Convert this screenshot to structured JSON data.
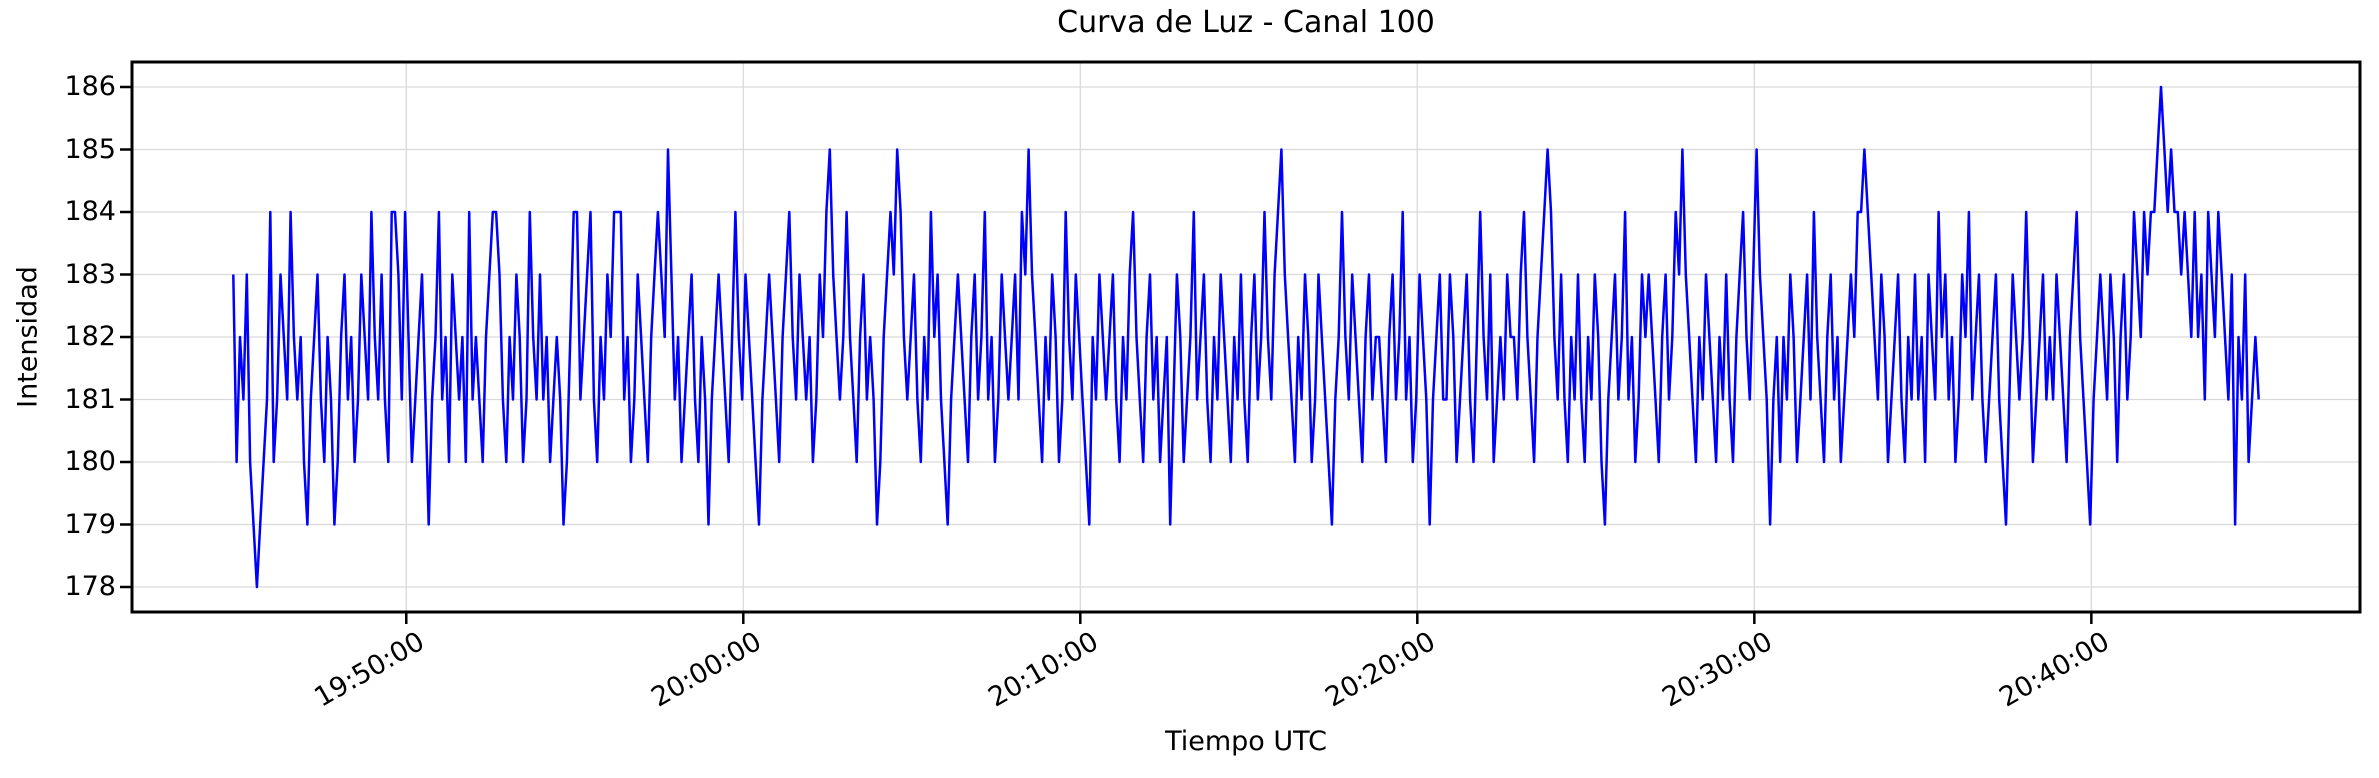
{
  "chart_data": {
    "type": "line",
    "title": "Curva de Luz - Canal 100",
    "xlabel": "Tiempo UTC",
    "ylabel": "Intensidad",
    "line_color": "#0000ff",
    "grid": true,
    "grid_color": "#d9d9d9",
    "background": "#ffffff",
    "ylim": [
      177.6,
      186.4
    ],
    "y_ticks": [
      178,
      179,
      180,
      181,
      182,
      183,
      184,
      185,
      186
    ],
    "x_tick_labels": [
      "19:50:00",
      "20:00:00",
      "20:10:00",
      "20:20:00",
      "20:30:00",
      "20:40:00"
    ],
    "x_start_utc": "19:44:52",
    "sample_interval_s": 6,
    "x_margin_fraction": 0.05,
    "values": [
      183,
      180,
      182,
      181,
      183,
      180,
      179,
      178,
      179,
      180,
      181,
      184,
      180,
      181,
      183,
      182,
      181,
      184,
      182,
      181,
      182,
      180,
      179,
      181,
      182,
      183,
      181,
      180,
      182,
      181,
      179,
      180,
      182,
      183,
      181,
      182,
      180,
      181,
      183,
      182,
      181,
      184,
      182,
      181,
      183,
      181,
      180,
      184,
      184,
      183,
      181,
      184,
      182,
      180,
      181,
      182,
      183,
      181,
      179,
      181,
      182,
      184,
      181,
      182,
      180,
      183,
      182,
      181,
      182,
      180,
      184,
      181,
      182,
      181,
      180,
      182,
      183,
      184,
      184,
      183,
      181,
      180,
      182,
      181,
      183,
      182,
      180,
      181,
      184,
      182,
      181,
      183,
      181,
      182,
      180,
      181,
      182,
      181,
      179,
      180,
      182,
      184,
      184,
      181,
      182,
      183,
      184,
      181,
      180,
      182,
      181,
      183,
      182,
      184,
      184,
      184,
      181,
      182,
      180,
      181,
      183,
      182,
      181,
      180,
      182,
      183,
      184,
      183,
      182,
      185,
      183,
      181,
      182,
      180,
      181,
      182,
      183,
      181,
      180,
      182,
      181,
      179,
      181,
      182,
      183,
      182,
      181,
      180,
      182,
      184,
      182,
      181,
      183,
      182,
      181,
      180,
      179,
      181,
      182,
      183,
      182,
      181,
      180,
      182,
      183,
      184,
      182,
      181,
      183,
      182,
      181,
      182,
      180,
      181,
      183,
      182,
      184,
      185,
      183,
      182,
      181,
      182,
      184,
      182,
      181,
      180,
      182,
      183,
      181,
      182,
      181,
      179,
      180,
      182,
      183,
      184,
      183,
      185,
      184,
      182,
      181,
      182,
      183,
      181,
      180,
      182,
      181,
      184,
      182,
      183,
      181,
      180,
      179,
      181,
      182,
      183,
      182,
      181,
      180,
      182,
      183,
      181,
      182,
      184,
      181,
      182,
      180,
      181,
      183,
      182,
      181,
      182,
      183,
      181,
      184,
      183,
      185,
      183,
      182,
      181,
      180,
      182,
      181,
      183,
      182,
      180,
      181,
      184,
      182,
      181,
      183,
      182,
      181,
      180,
      179,
      182,
      181,
      183,
      182,
      181,
      182,
      183,
      181,
      180,
      182,
      181,
      183,
      184,
      182,
      181,
      180,
      182,
      183,
      181,
      182,
      180,
      181,
      182,
      179,
      181,
      183,
      182,
      180,
      181,
      182,
      184,
      181,
      182,
      183,
      181,
      180,
      182,
      181,
      183,
      182,
      181,
      180,
      182,
      181,
      183,
      181,
      180,
      182,
      183,
      181,
      182,
      184,
      182,
      181,
      183,
      184,
      185,
      183,
      182,
      181,
      180,
      182,
      181,
      183,
      182,
      180,
      181,
      183,
      182,
      181,
      180,
      179,
      181,
      182,
      184,
      182,
      181,
      183,
      182,
      181,
      180,
      182,
      183,
      181,
      182,
      182,
      181,
      180,
      182,
      183,
      181,
      182,
      184,
      181,
      182,
      180,
      181,
      183,
      182,
      181,
      179,
      181,
      182,
      183,
      181,
      181,
      183,
      182,
      180,
      181,
      182,
      183,
      181,
      180,
      182,
      184,
      182,
      181,
      183,
      180,
      181,
      182,
      181,
      183,
      182,
      182,
      181,
      183,
      184,
      182,
      181,
      180,
      182,
      183,
      184,
      185,
      184,
      182,
      181,
      183,
      181,
      180,
      182,
      181,
      183,
      181,
      180,
      182,
      181,
      183,
      182,
      180,
      179,
      181,
      182,
      183,
      181,
      182,
      184,
      181,
      182,
      180,
      181,
      183,
      182,
      183,
      182,
      181,
      180,
      182,
      183,
      181,
      182,
      184,
      183,
      185,
      183,
      182,
      181,
      180,
      182,
      181,
      183,
      182,
      181,
      180,
      182,
      181,
      183,
      181,
      180,
      182,
      183,
      184,
      182,
      181,
      183,
      185,
      183,
      182,
      181,
      179,
      181,
      182,
      180,
      182,
      181,
      183,
      182,
      180,
      181,
      182,
      183,
      181,
      184,
      182,
      181,
      180,
      182,
      183,
      181,
      182,
      180,
      181,
      182,
      183,
      182,
      184,
      184,
      185,
      184,
      183,
      182,
      181,
      183,
      182,
      180,
      181,
      182,
      183,
      181,
      180,
      182,
      181,
      183,
      181,
      182,
      180,
      183,
      182,
      181,
      184,
      182,
      183,
      181,
      182,
      180,
      181,
      183,
      182,
      184,
      181,
      182,
      183,
      181,
      180,
      181,
      182,
      183,
      181,
      180,
      179,
      181,
      183,
      182,
      181,
      182,
      184,
      182,
      180,
      181,
      182,
      183,
      181,
      182,
      181,
      183,
      182,
      181,
      180,
      182,
      183,
      184,
      182,
      181,
      180,
      179,
      181,
      182,
      183,
      182,
      181,
      183,
      182,
      180,
      182,
      183,
      181,
      182,
      184,
      183,
      182,
      184,
      183,
      184,
      184,
      185,
      186,
      185,
      184,
      185,
      184,
      184,
      183,
      184,
      183,
      182,
      184,
      182,
      183,
      181,
      184,
      183,
      182,
      184,
      183,
      182,
      181,
      183,
      179,
      182,
      181,
      183,
      180,
      181,
      182,
      181
    ]
  }
}
